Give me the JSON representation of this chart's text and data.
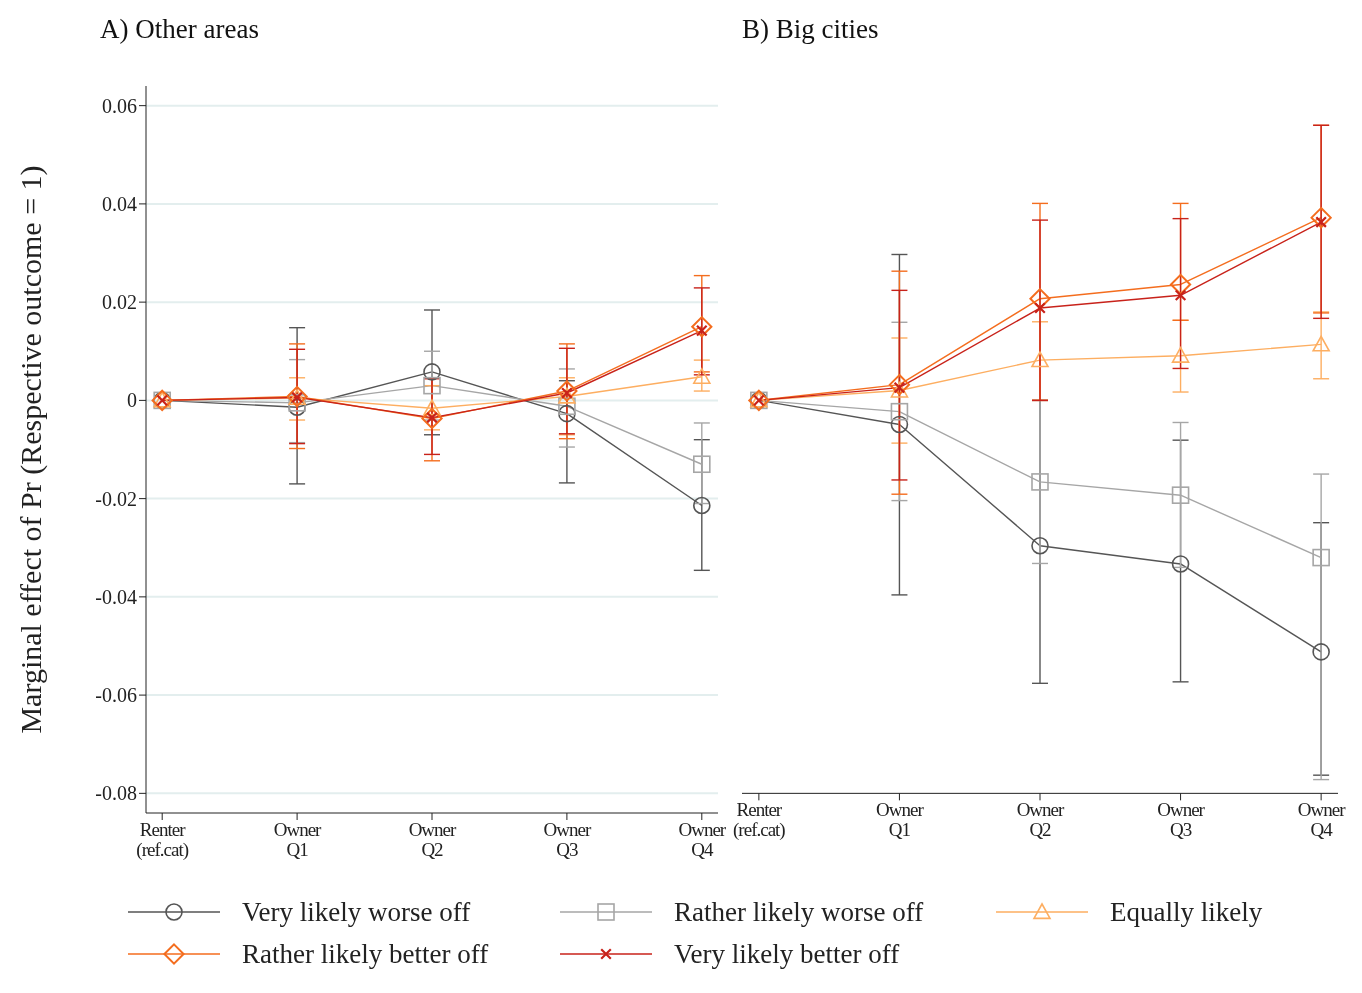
{
  "chart_data": [
    {
      "type": "line",
      "title": "A) Other areas",
      "ylabel": "Marginal effect of Pr (Respective outcome = 1)",
      "categories": [
        "Renter\n(ref.cat)",
        "Owner\nQ1",
        "Owner\nQ2",
        "Owner\nQ3",
        "Owner\nQ4"
      ],
      "ylim": [
        -0.084,
        0.064
      ],
      "yticks": [
        0.06,
        0.04,
        0.02,
        0,
        -0.02,
        -0.04,
        -0.06,
        -0.08
      ],
      "grid": "y",
      "legend": "bottom",
      "series": [
        {
          "name": "Very likely worse off",
          "color": "#555555",
          "marker": "circle",
          "values": [
            0,
            -0.0014,
            0.0058,
            -0.0027,
            -0.0214
          ],
          "errors": [
            null,
            [
              -0.017,
              0.0148
            ],
            [
              -0.007,
              0.0184
            ],
            [
              -0.0168,
              0.004
            ],
            [
              -0.0346,
              -0.008
            ]
          ]
        },
        {
          "name": "Rather likely worse off",
          "color": "#a6a6a6",
          "marker": "square",
          "values": [
            0,
            -0.0005,
            0.003,
            -0.0012,
            -0.013
          ],
          "errors": [
            null,
            [
              -0.0086,
              0.0083
            ],
            [
              -0.004,
              0.01
            ],
            [
              -0.0095,
              0.0064
            ],
            [
              -0.021,
              -0.0046
            ]
          ]
        },
        {
          "name": "Equally likely",
          "color": "#fdae61",
          "marker": "triangle",
          "values": [
            0,
            0.0005,
            -0.0016,
            0.0008,
            0.0048
          ],
          "errors": [
            null,
            [
              -0.004,
              0.0046
            ],
            [
              -0.006,
              0.003
            ],
            [
              -0.007,
              0.0046
            ],
            [
              0.0019,
              0.0082
            ]
          ]
        },
        {
          "name": "Rather likely better off",
          "color": "#f46d1e",
          "marker": "diamond",
          "values": [
            0,
            0.0008,
            -0.0037,
            0.0019,
            0.015
          ],
          "errors": [
            null,
            [
              -0.0098,
              0.0115
            ],
            [
              -0.0123,
              0.0046
            ],
            [
              -0.0078,
              0.0115
            ],
            [
              0.0058,
              0.0254
            ]
          ]
        },
        {
          "name": "Very likely better off",
          "color": "#c8221a",
          "marker": "cross",
          "values": [
            0,
            0.0006,
            -0.0035,
            0.0015,
            0.0142
          ],
          "errors": [
            null,
            [
              -0.0088,
              0.0104
            ],
            [
              -0.011,
              0.0044
            ],
            [
              -0.0068,
              0.0106
            ],
            [
              0.0052,
              0.0229
            ]
          ]
        }
      ]
    },
    {
      "type": "line",
      "title": "B) Big cities",
      "categories": [
        "Renter\n(ref.cat)",
        "Owner\nQ1",
        "Owner\nQ2",
        "Owner\nQ3",
        "Owner\nQ4"
      ],
      "ylim": [
        -0.08,
        0.06
      ],
      "yticks": [
        0.06,
        0.04,
        0.02,
        0,
        -0.02,
        -0.04,
        -0.06,
        -0.08
      ],
      "grid": "y",
      "tick_labels": "x",
      "series": [
        {
          "color": "#555555",
          "marker": "circle",
          "values": [
            0,
            -0.0049,
            -0.0296,
            -0.0333,
            -0.0512
          ],
          "errors": [
            null,
            [
              -0.0396,
              0.0297
            ],
            [
              -0.0576,
              0
            ],
            [
              -0.0573,
              -0.0081
            ],
            [
              -0.0763,
              -0.0249
            ]
          ]
        },
        {
          "color": "#a6a6a6",
          "marker": "square",
          "values": [
            0,
            -0.0023,
            -0.0166,
            -0.0193,
            -0.032
          ],
          "errors": [
            null,
            [
              -0.0204,
              0.0159
            ],
            [
              -0.0332,
              0
            ],
            [
              -0.034,
              -0.0045
            ],
            [
              -0.0772,
              -0.015
            ]
          ]
        },
        {
          "color": "#fdae61",
          "marker": "triangle",
          "values": [
            0,
            0.002,
            0.0082,
            0.0091,
            0.0114
          ],
          "errors": [
            null,
            [
              -0.0087,
              0.0127
            ],
            [
              0,
              0.016
            ],
            [
              0.0017,
              0.0163
            ],
            [
              0.0044,
              0.018
            ]
          ]
        },
        {
          "color": "#f46d1e",
          "marker": "diamond",
          "values": [
            0,
            0.0032,
            0.0207,
            0.0236,
            0.0372
          ],
          "errors": [
            null,
            [
              -0.0191,
              0.0263
            ],
            [
              0,
              0.0401
            ],
            [
              0.0163,
              0.0401
            ],
            [
              0.0178,
              0.056
            ]
          ]
        },
        {
          "color": "#c8221a",
          "marker": "cross",
          "values": [
            0,
            0.0026,
            0.0188,
            0.0214,
            0.0363
          ],
          "errors": [
            null,
            [
              -0.0162,
              0.0224
            ],
            [
              0,
              0.0367
            ],
            [
              0.0065,
              0.037
            ],
            [
              0.0167,
              0.056
            ]
          ]
        }
      ]
    }
  ]
}
